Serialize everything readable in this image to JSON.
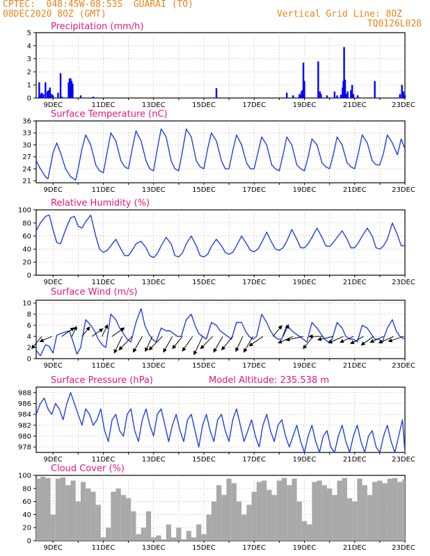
{
  "header": {
    "line1": "CPTEC:  048:45W-08:53S  GUARAI (TO)",
    "line2": "08DEC2020 8OZ (GMT)",
    "right1": "Vertical Grid Line: 8OZ",
    "right2": "TQ0126L028"
  },
  "x_axis": {
    "tick_labels": [
      "9DEC",
      "11DEC",
      "13DEC",
      "15DEC",
      "17DEC",
      "19DEC",
      "21DEC",
      "23DEC"
    ],
    "tick_days": [
      9,
      11,
      13,
      15,
      17,
      19,
      21,
      23
    ],
    "range_days": [
      8.33,
      23.0
    ]
  },
  "chart_data": [
    {
      "type": "bar",
      "title": "Precipitation (mm/h)",
      "ylim": [
        0,
        5
      ],
      "yticks": [
        0,
        1,
        2,
        3,
        4,
        5
      ],
      "color": "#0000ff",
      "x": [
        8.45,
        8.52,
        8.55,
        8.62,
        8.7,
        8.78,
        8.82,
        8.88,
        8.95,
        9.0,
        9.2,
        9.3,
        9.35,
        9.62,
        9.66,
        9.7,
        9.74,
        9.78,
        10.1,
        10.6,
        15.5,
        18.3,
        18.55,
        18.8,
        18.84,
        18.88,
        18.92,
        18.96,
        19.0,
        19.55,
        19.62,
        19.66,
        19.9,
        20.2,
        20.3,
        20.45,
        20.52,
        20.55,
        20.58,
        20.62,
        20.66,
        20.72,
        20.85,
        20.9,
        20.95,
        21.12,
        21.8,
        22.8,
        22.88,
        22.94,
        23.0
      ],
      "values": [
        1.2,
        0.3,
        0.4,
        0.3,
        1.2,
        0.5,
        0.6,
        0.8,
        0.3,
        0.2,
        0.4,
        1.9,
        0.1,
        1.2,
        1.5,
        1.5,
        1.3,
        1.1,
        0.2,
        0.1,
        0.75,
        0.4,
        0.2,
        0.3,
        0.2,
        0.5,
        0.6,
        2.7,
        1.3,
        2.8,
        0.5,
        0.3,
        0.2,
        0.5,
        0.2,
        0.25,
        0.8,
        1.3,
        3.9,
        1.4,
        0.3,
        0.5,
        0.6,
        1.0,
        0.3,
        0.2,
        1.3,
        0.3,
        1.0,
        0.5,
        0.2
      ]
    },
    {
      "type": "line",
      "title": "Surface Temperature (nC)",
      "ylim": [
        20.5,
        36
      ],
      "yticks": [
        21,
        24,
        27,
        30,
        33,
        36
      ],
      "color": "#1f3fe0",
      "x": [
        8.33,
        8.5,
        8.7,
        8.8,
        9.0,
        9.15,
        9.3,
        9.5,
        9.7,
        9.9,
        10.0,
        10.15,
        10.3,
        10.5,
        10.7,
        10.85,
        11.0,
        11.15,
        11.3,
        11.5,
        11.7,
        11.85,
        12.0,
        12.15,
        12.3,
        12.5,
        12.7,
        12.85,
        13.0,
        13.15,
        13.3,
        13.5,
        13.7,
        13.85,
        14.0,
        14.15,
        14.3,
        14.5,
        14.7,
        14.85,
        15.0,
        15.15,
        15.3,
        15.5,
        15.7,
        15.85,
        16.0,
        16.15,
        16.3,
        16.5,
        16.7,
        16.85,
        17.0,
        17.15,
        17.3,
        17.5,
        17.7,
        17.85,
        18.0,
        18.15,
        18.3,
        18.5,
        18.7,
        18.85,
        19.0,
        19.15,
        19.3,
        19.5,
        19.7,
        19.85,
        20.0,
        20.15,
        20.3,
        20.5,
        20.7,
        20.85,
        21.0,
        21.15,
        21.3,
        21.5,
        21.7,
        21.85,
        22.0,
        22.15,
        22.3,
        22.5,
        22.7,
        22.85,
        23.0
      ],
      "values": [
        26,
        24,
        22,
        21.5,
        28,
        30.5,
        28,
        24,
        22,
        21.2,
        24,
        29,
        32.5,
        30,
        25,
        23.5,
        23,
        28,
        33,
        31,
        26,
        24.5,
        24,
        29,
        33.5,
        31,
        26,
        24,
        23.5,
        29,
        34,
        32,
        26,
        24,
        23.5,
        28.5,
        34,
        32,
        26,
        24.5,
        24,
        29,
        33,
        31,
        26,
        24,
        24,
        28.5,
        32.5,
        30,
        25.5,
        24,
        24,
        28,
        32,
        30,
        25,
        24,
        23.5,
        27.5,
        32,
        30,
        25,
        24,
        23.5,
        27,
        31.5,
        30,
        25.5,
        24.5,
        24,
        27.5,
        32,
        30,
        25.5,
        24.5,
        24,
        28,
        32.5,
        30.5,
        26,
        25,
        25,
        28,
        32.5,
        30.5,
        27.5,
        31.5,
        29
      ]
    },
    {
      "type": "line",
      "title": "Relative Humidity (%)",
      "ylim": [
        0,
        100
      ],
      "yticks": [
        0,
        20,
        40,
        60,
        80,
        100
      ],
      "color": "#1f3fe0",
      "x": [
        8.33,
        8.5,
        8.7,
        8.85,
        9.0,
        9.15,
        9.3,
        9.5,
        9.7,
        9.85,
        10.0,
        10.15,
        10.3,
        10.5,
        10.7,
        10.85,
        11.0,
        11.15,
        11.3,
        11.5,
        11.7,
        11.85,
        12.0,
        12.15,
        12.3,
        12.5,
        12.7,
        12.85,
        13.0,
        13.15,
        13.3,
        13.5,
        13.7,
        13.85,
        14.0,
        14.15,
        14.3,
        14.5,
        14.7,
        14.85,
        15.0,
        15.15,
        15.3,
        15.5,
        15.7,
        15.85,
        16.0,
        16.15,
        16.3,
        16.5,
        16.7,
        16.85,
        17.0,
        17.15,
        17.3,
        17.5,
        17.7,
        17.85,
        18.0,
        18.15,
        18.3,
        18.5,
        18.7,
        18.85,
        19.0,
        19.15,
        19.3,
        19.5,
        19.7,
        19.85,
        20.0,
        20.15,
        20.3,
        20.5,
        20.7,
        20.85,
        21.0,
        21.15,
        21.3,
        21.5,
        21.7,
        21.85,
        22.0,
        22.15,
        22.3,
        22.5,
        22.7,
        22.85,
        23.0
      ],
      "values": [
        68,
        80,
        90,
        92,
        70,
        50,
        48,
        70,
        88,
        90,
        75,
        72,
        82,
        92,
        60,
        40,
        35,
        38,
        45,
        55,
        40,
        30,
        30,
        38,
        48,
        52,
        42,
        30,
        27,
        33,
        45,
        58,
        48,
        30,
        28,
        34,
        48,
        60,
        45,
        30,
        28,
        32,
        44,
        55,
        45,
        35,
        32,
        35,
        45,
        60,
        48,
        38,
        36,
        40,
        50,
        66,
        50,
        40,
        38,
        42,
        52,
        70,
        55,
        42,
        42,
        48,
        58,
        72,
        58,
        45,
        44,
        50,
        58,
        68,
        55,
        42,
        42,
        50,
        60,
        72,
        60,
        42,
        40,
        45,
        55,
        80,
        62,
        45,
        45
      ]
    },
    {
      "type": "line",
      "title": "Surface Wind (m/s)",
      "ylim": [
        0,
        10.5
      ],
      "yticks": [
        0,
        2,
        4,
        6,
        8,
        10
      ],
      "color": "#1f3fe0",
      "x": [
        8.33,
        8.5,
        8.7,
        8.85,
        9.0,
        9.15,
        9.3,
        9.5,
        9.65,
        9.8,
        9.95,
        10.1,
        10.3,
        10.5,
        10.65,
        10.8,
        10.95,
        11.1,
        11.3,
        11.5,
        11.65,
        11.8,
        11.95,
        12.1,
        12.3,
        12.5,
        12.65,
        12.8,
        12.95,
        13.1,
        13.3,
        13.5,
        13.65,
        13.8,
        13.95,
        14.1,
        14.3,
        14.5,
        14.65,
        14.8,
        14.95,
        15.1,
        15.3,
        15.5,
        15.65,
        15.8,
        15.95,
        16.1,
        16.3,
        16.5,
        16.65,
        16.8,
        16.95,
        17.1,
        17.3,
        17.5,
        17.65,
        17.8,
        17.95,
        18.1,
        18.3,
        18.5,
        18.65,
        18.8,
        18.95,
        19.1,
        19.3,
        19.5,
        19.65,
        19.8,
        19.95,
        20.1,
        20.3,
        20.5,
        20.65,
        20.8,
        20.95,
        21.1,
        21.3,
        21.5,
        21.65,
        21.8,
        21.95,
        22.1,
        22.3,
        22.5,
        22.65,
        22.8,
        23.0
      ],
      "values": [
        1.5,
        0.5,
        2.5,
        2.2,
        1.0,
        4.2,
        4.5,
        4.8,
        5.0,
        3.0,
        0.8,
        2.0,
        7.0,
        6.0,
        5.0,
        3.5,
        2.5,
        2.0,
        8.0,
        7.0,
        5.5,
        4.5,
        3.5,
        3.0,
        6.5,
        9.0,
        6.0,
        4.5,
        3.5,
        3.0,
        5.5,
        5.0,
        5.0,
        4.5,
        4.0,
        4.0,
        7.0,
        8.0,
        6.0,
        4.5,
        4.0,
        3.5,
        6.5,
        6.0,
        5.0,
        4.5,
        4.0,
        3.5,
        6.5,
        6.5,
        5.0,
        4.0,
        3.5,
        4.0,
        8.0,
        6.5,
        5.0,
        4.0,
        3.5,
        3.5,
        6.0,
        5.0,
        4.5,
        4.0,
        3.5,
        3.0,
        6.5,
        5.5,
        4.5,
        3.5,
        3.0,
        3.5,
        6.5,
        5.5,
        4.0,
        3.5,
        3.5,
        3.0,
        6.0,
        5.5,
        4.5,
        3.5,
        3.5,
        3.0,
        5.5,
        7.0,
        5.0,
        4.0,
        3.5
      ]
    },
    {
      "type": "line",
      "title": "Surface Pressure (hPa)",
      "subtitle": "Model Altitude: 235.538 m",
      "ylim": [
        977,
        989
      ],
      "yticks": [
        978,
        980,
        982,
        984,
        986,
        988
      ],
      "color": "#1f3fe0",
      "x": [
        8.33,
        8.5,
        8.65,
        8.8,
        8.95,
        9.1,
        9.25,
        9.4,
        9.55,
        9.7,
        9.85,
        10.0,
        10.15,
        10.3,
        10.45,
        10.6,
        10.75,
        10.9,
        11.05,
        11.2,
        11.35,
        11.5,
        11.65,
        11.8,
        11.95,
        12.1,
        12.25,
        12.4,
        12.55,
        12.7,
        12.85,
        13.0,
        13.15,
        13.3,
        13.45,
        13.6,
        13.75,
        13.9,
        14.05,
        14.2,
        14.35,
        14.5,
        14.65,
        14.8,
        14.95,
        15.1,
        15.25,
        15.4,
        15.55,
        15.7,
        15.85,
        16.0,
        16.15,
        16.3,
        16.45,
        16.6,
        16.75,
        16.9,
        17.05,
        17.2,
        17.35,
        17.5,
        17.65,
        17.8,
        17.95,
        18.1,
        18.25,
        18.4,
        18.55,
        18.7,
        18.85,
        19.0,
        19.15,
        19.3,
        19.45,
        19.6,
        19.75,
        19.9,
        20.05,
        20.2,
        20.35,
        20.5,
        20.65,
        20.8,
        20.95,
        21.1,
        21.25,
        21.4,
        21.55,
        21.7,
        21.85,
        22.0,
        22.15,
        22.3,
        22.45,
        22.6,
        22.75,
        22.9,
        23.0
      ],
      "values": [
        984,
        986,
        987,
        985,
        984,
        986,
        985,
        983,
        986,
        988,
        986,
        984,
        982,
        985,
        984,
        982,
        983,
        985,
        981,
        979,
        983,
        984,
        981,
        980,
        984,
        985,
        981,
        979,
        983,
        985,
        982,
        980,
        984,
        985,
        982,
        979,
        982,
        984,
        981,
        979,
        983,
        984,
        981,
        978,
        982,
        984,
        981,
        979,
        983,
        984,
        981,
        979,
        983,
        985,
        982,
        979,
        981,
        983,
        980,
        978,
        982,
        984,
        981,
        979,
        982,
        983,
        980,
        978,
        980,
        982,
        979,
        977,
        980,
        982,
        979,
        977,
        980,
        981,
        978,
        977,
        980,
        982,
        979,
        977,
        980,
        982,
        979,
        977,
        980,
        981,
        978,
        977,
        980,
        982,
        979,
        977,
        980,
        983,
        977
      ]
    },
    {
      "type": "bar",
      "title": "Cloud Cover (%)",
      "ylim": [
        0,
        100
      ],
      "yticks": [
        0,
        20,
        40,
        60,
        80,
        100
      ],
      "color": "#a9a9a9",
      "x": [
        8.4,
        8.6,
        8.8,
        9.0,
        9.2,
        9.4,
        9.6,
        9.8,
        10.0,
        10.2,
        10.4,
        10.6,
        10.8,
        11.0,
        11.2,
        11.4,
        11.6,
        11.8,
        12.0,
        12.2,
        12.4,
        12.6,
        12.8,
        13.0,
        13.2,
        13.4,
        13.6,
        13.8,
        14.0,
        14.2,
        14.4,
        14.6,
        14.8,
        15.0,
        15.2,
        15.4,
        15.6,
        15.8,
        16.0,
        16.2,
        16.4,
        16.6,
        16.8,
        17.0,
        17.2,
        17.4,
        17.6,
        17.8,
        18.0,
        18.2,
        18.4,
        18.6,
        18.8,
        19.0,
        19.2,
        19.4,
        19.6,
        19.8,
        20.0,
        20.2,
        20.4,
        20.6,
        20.8,
        21.0,
        21.2,
        21.4,
        21.6,
        21.8,
        22.0,
        22.2,
        22.4,
        22.6,
        22.8,
        23.0
      ],
      "values": [
        95,
        98,
        96,
        40,
        95,
        97,
        85,
        92,
        60,
        90,
        80,
        75,
        55,
        5,
        20,
        75,
        80,
        70,
        65,
        45,
        10,
        20,
        45,
        5,
        8,
        2,
        25,
        5,
        20,
        2,
        15,
        5,
        25,
        10,
        40,
        60,
        85,
        70,
        95,
        88,
        60,
        40,
        55,
        75,
        90,
        92,
        78,
        70,
        92,
        96,
        85,
        95,
        60,
        30,
        25,
        90,
        92,
        85,
        80,
        70,
        92,
        96,
        65,
        60,
        95,
        85,
        70,
        90,
        92,
        88,
        95,
        96,
        90,
        94
      ]
    }
  ],
  "wind_arrows": {
    "label": "wind direction barbs",
    "days": [
      8.55,
      8.95,
      9.35,
      9.75,
      10.15,
      10.55,
      10.95,
      11.35,
      11.75,
      12.15,
      12.55,
      12.95,
      13.35,
      13.75,
      14.15,
      14.55,
      14.95,
      15.35,
      15.75,
      16.15,
      16.55,
      16.95,
      17.35,
      17.75,
      18.15,
      18.55,
      18.95,
      19.35,
      19.75,
      20.15,
      20.55,
      20.95,
      21.35,
      21.75,
      22.15,
      22.55,
      22.95
    ],
    "speed": [
      4.5,
      4.0,
      4.5,
      3.0,
      3.5,
      4.0,
      3.5,
      4.5,
      5.0,
      5.5,
      5.0,
      4.5,
      5.5,
      5.0,
      4.5,
      5.0,
      5.5,
      5.0,
      5.0,
      5.0,
      4.5,
      5.0,
      5.0,
      4.0,
      3.5,
      5.0,
      5.5,
      4.5,
      4.5,
      5.0,
      5.0,
      4.5,
      4.5,
      4.5,
      4.5,
      5.0,
      5.0
    ],
    "dir_deg": [
      225,
      200,
      30,
      60,
      45,
      30,
      60,
      30,
      240,
      220,
      235,
      240,
      220,
      235,
      225,
      230,
      240,
      220,
      235,
      225,
      240,
      235,
      210,
      45,
      60,
      200,
      190,
      225,
      180,
      190,
      200,
      200,
      205,
      210,
      200,
      200,
      195
    ]
  }
}
